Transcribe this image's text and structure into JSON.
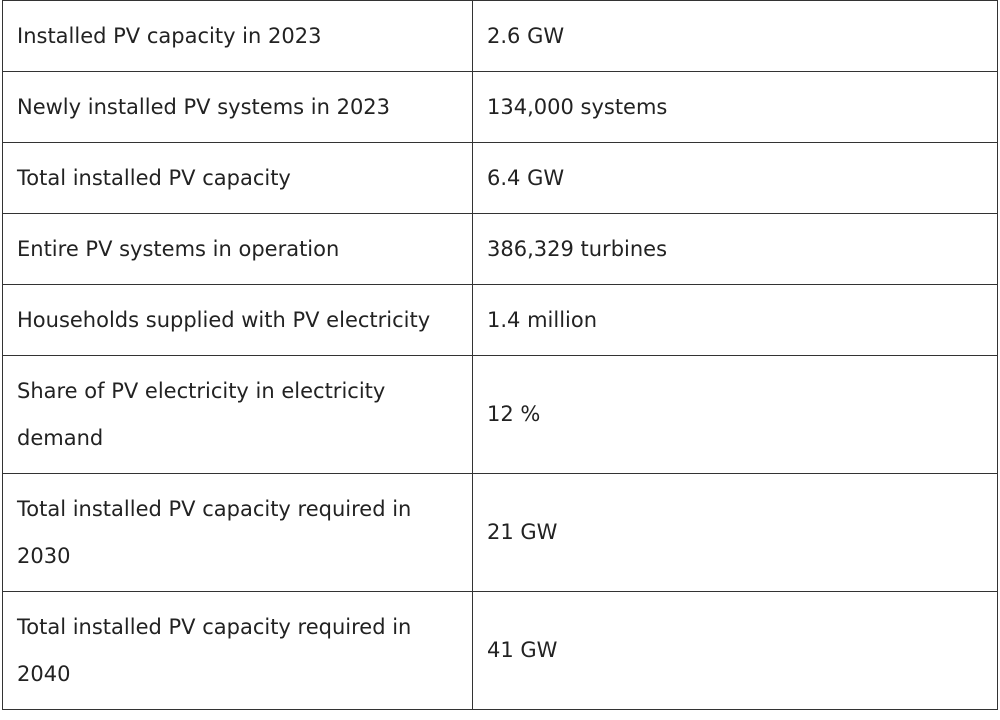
{
  "table": {
    "rows": [
      {
        "label": "Installed PV capacity in 2023",
        "value": "2.6 GW"
      },
      {
        "label": "Newly installed PV systems in 2023",
        "value": "134,000 systems"
      },
      {
        "label": "Total installed PV capacity",
        "value": "6.4 GW"
      },
      {
        "label": "Entire PV systems in operation",
        "value": "386,329 turbines"
      },
      {
        "label": "Households supplied with PV electricity",
        "value": "1.4 million"
      },
      {
        "label": "Share of PV electricity in electricity demand",
        "value": "12 %"
      },
      {
        "label": "Total installed PV capacity required in 2030",
        "value": "21 GW"
      },
      {
        "label": "Total installed PV capacity required in 2040",
        "value": "41 GW"
      }
    ]
  }
}
